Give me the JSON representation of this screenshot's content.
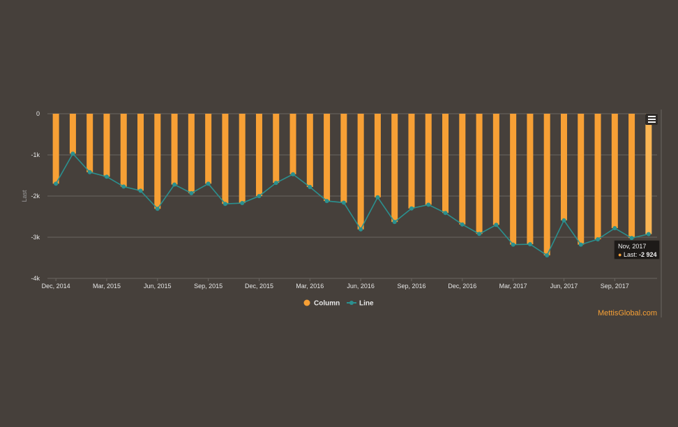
{
  "chart_data": {
    "type": "bar",
    "title": "",
    "xlabel": "",
    "ylabel": "Last",
    "ylim": [
      -4000,
      0
    ],
    "yticks": [
      0,
      -1000,
      -2000,
      -3000,
      -4000
    ],
    "ytick_labels": [
      "0",
      "-1k",
      "-2k",
      "-3k",
      "-4k"
    ],
    "x_tick_labels": [
      "Dec, 2014",
      "Mar, 2015",
      "Jun, 2015",
      "Sep, 2015",
      "Dec, 2015",
      "Mar, 2016",
      "Jun, 2016",
      "Sep, 2016",
      "Dec, 2016",
      "Mar, 2017",
      "Jun, 2017",
      "Sep, 2017"
    ],
    "x_tick_every": 3,
    "categories": [
      "Dec, 2014",
      "Jan, 2015",
      "Feb, 2015",
      "Mar, 2015",
      "Apr, 2015",
      "May, 2015",
      "Jun, 2015",
      "Jul, 2015",
      "Aug, 2015",
      "Sep, 2015",
      "Oct, 2015",
      "Nov, 2015",
      "Dec, 2015",
      "Jan, 2016",
      "Feb, 2016",
      "Mar, 2016",
      "Apr, 2016",
      "May, 2016",
      "Jun, 2016",
      "Jul, 2016",
      "Aug, 2016",
      "Sep, 2016",
      "Oct, 2016",
      "Nov, 2016",
      "Dec, 2016",
      "Jan, 2017",
      "Feb, 2017",
      "Mar, 2017",
      "Apr, 2017",
      "May, 2017",
      "Jun, 2017",
      "Jul, 2017",
      "Aug, 2017",
      "Sep, 2017",
      "Oct, 2017",
      "Nov, 2017"
    ],
    "series": [
      {
        "name": "Column",
        "type": "column",
        "color": "#f7a035",
        "values": [
          -1700,
          -970,
          -1420,
          -1530,
          -1770,
          -1870,
          -2310,
          -1720,
          -1930,
          -1700,
          -2190,
          -2170,
          -2000,
          -1680,
          -1470,
          -1780,
          -2120,
          -2160,
          -2810,
          -2030,
          -2630,
          -2300,
          -2210,
          -2410,
          -2690,
          -2920,
          -2700,
          -3180,
          -3170,
          -3440,
          -2590,
          -3180,
          -3050,
          -2780,
          -3020,
          -2924
        ]
      },
      {
        "name": "Line",
        "type": "line",
        "color": "#2b908f",
        "values": [
          -1700,
          -970,
          -1420,
          -1530,
          -1770,
          -1870,
          -2310,
          -1720,
          -1930,
          -1700,
          -2190,
          -2170,
          -2000,
          -1680,
          -1470,
          -1780,
          -2120,
          -2160,
          -2810,
          -2030,
          -2630,
          -2300,
          -2210,
          -2410,
          -2690,
          -2920,
          -2700,
          -3180,
          -3170,
          -3440,
          -2590,
          -3180,
          -3050,
          -2780,
          -3020,
          -2924
        ]
      }
    ],
    "legend": {
      "placement": "bottom-center",
      "items": [
        "Column",
        "Line"
      ]
    }
  },
  "tooltip": {
    "date": "Nov, 2017",
    "series_label": "Last:",
    "value": "-2 924"
  },
  "credit": "MettisGlobal.com",
  "colors": {
    "background": "#46403b",
    "column": "#f7a035",
    "line": "#2b908f",
    "grid": "#6b6661"
  },
  "menu_icon": "hamburger-menu-icon"
}
